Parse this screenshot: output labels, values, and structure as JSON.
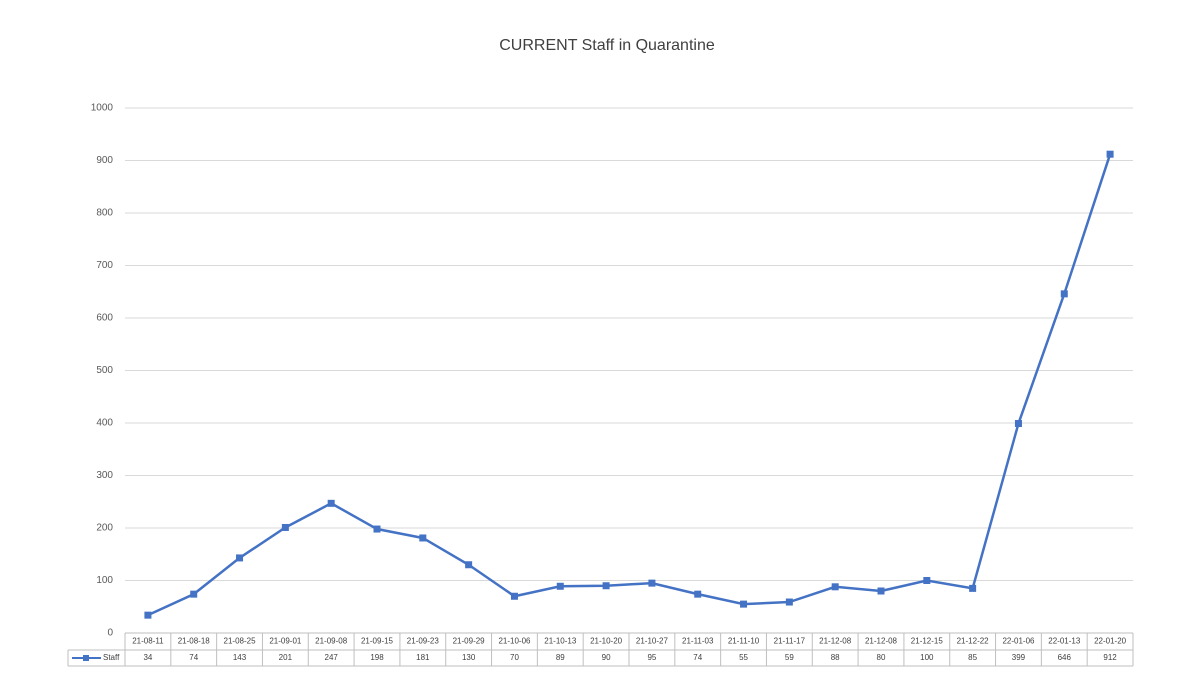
{
  "chart_data": {
    "type": "line",
    "title": "CURRENT Staff in Quarantine",
    "categories": [
      "21-08-11",
      "21-08-18",
      "21-08-25",
      "21-09-01",
      "21-09-08",
      "21-09-15",
      "21-09-23",
      "21-09-29",
      "21-10-06",
      "21-10-13",
      "21-10-20",
      "21-10-27",
      "21-11-03",
      "21-11-10",
      "21-11-17",
      "21-12-08",
      "21-12-08",
      "21-12-15",
      "21-12-22",
      "22-01-06",
      "22-01-13",
      "22-01-20"
    ],
    "series": [
      {
        "name": "Staff",
        "color": "#4472c4",
        "values": [
          34,
          74,
          143,
          201,
          247,
          198,
          181,
          130,
          70,
          89,
          90,
          95,
          74,
          55,
          59,
          88,
          80,
          100,
          85,
          399,
          646,
          912
        ]
      }
    ],
    "ylim": [
      0,
      1000
    ],
    "yticks": [
      0,
      100,
      200,
      300,
      400,
      500,
      600,
      700,
      800,
      900,
      1000
    ],
    "grid": true,
    "data_table": true
  }
}
